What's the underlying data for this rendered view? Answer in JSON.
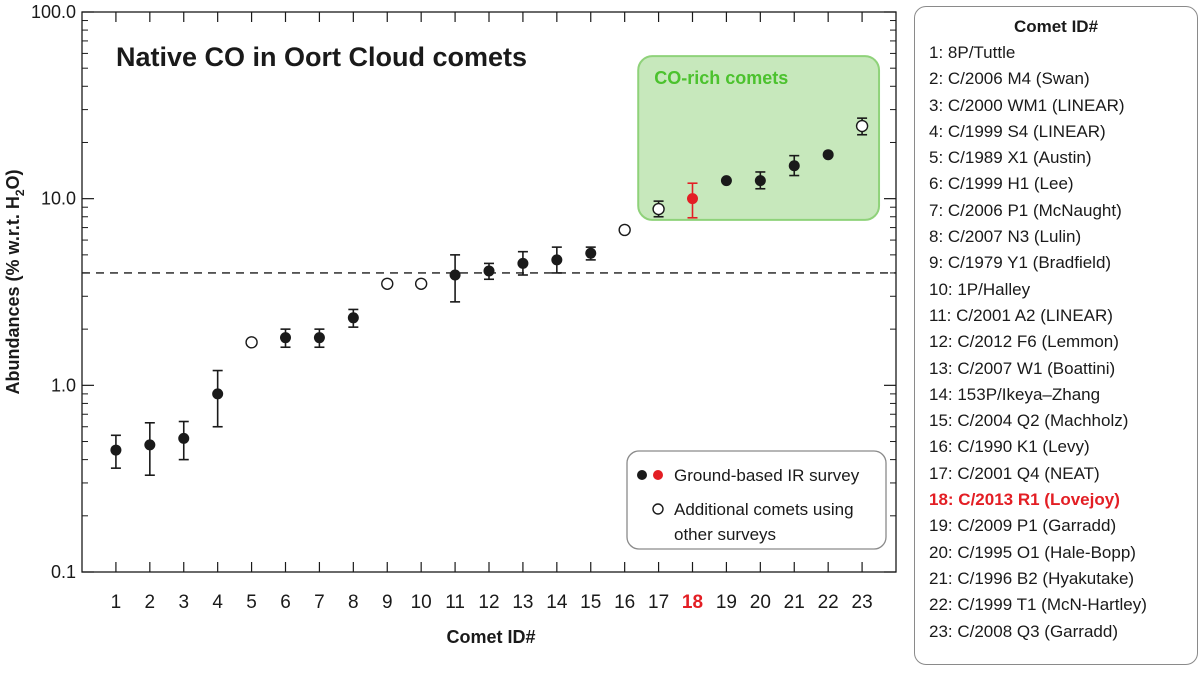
{
  "chart_data": {
    "type": "scatter",
    "title": "Native CO in Oort Cloud comets",
    "xlabel": "Comet ID#",
    "ylabel_parts": [
      "Abundances (% w.r.t. H",
      "2",
      "O)"
    ],
    "yscale": "log",
    "ylim": [
      0.1,
      100.0
    ],
    "yticks": [
      "0.1",
      "1.0",
      "10.0",
      "100.0"
    ],
    "xlim": [
      0,
      24
    ],
    "categories": [
      "1",
      "2",
      "3",
      "4",
      "5",
      "6",
      "7",
      "8",
      "9",
      "10",
      "11",
      "12",
      "13",
      "14",
      "15",
      "16",
      "17",
      "18",
      "19",
      "20",
      "21",
      "22",
      "23"
    ],
    "highlight_category": "18",
    "reference_line": 4.0,
    "series": [
      {
        "name": "Ground-based IR survey",
        "marker": "filled",
        "color": "#1a1a1a",
        "points": [
          {
            "x": 1,
            "y": 0.45,
            "lo": 0.36,
            "hi": 0.54
          },
          {
            "x": 2,
            "y": 0.48,
            "lo": 0.33,
            "hi": 0.63
          },
          {
            "x": 3,
            "y": 0.52,
            "lo": 0.4,
            "hi": 0.64
          },
          {
            "x": 4,
            "y": 0.9,
            "lo": 0.6,
            "hi": 1.2
          },
          {
            "x": 6,
            "y": 1.8,
            "lo": 1.6,
            "hi": 2.0
          },
          {
            "x": 7,
            "y": 1.8,
            "lo": 1.6,
            "hi": 2.0
          },
          {
            "x": 8,
            "y": 2.3,
            "lo": 2.05,
            "hi": 2.55
          },
          {
            "x": 11,
            "y": 3.9,
            "lo": 2.8,
            "hi": 5.0
          },
          {
            "x": 12,
            "y": 4.1,
            "lo": 3.7,
            "hi": 4.5
          },
          {
            "x": 13,
            "y": 4.5,
            "lo": 3.9,
            "hi": 5.2
          },
          {
            "x": 14,
            "y": 4.7,
            "lo": 4.0,
            "hi": 5.5
          },
          {
            "x": 15,
            "y": 5.1,
            "lo": 4.7,
            "hi": 5.5
          },
          {
            "x": 19,
            "y": 12.5,
            "lo": null,
            "hi": null
          },
          {
            "x": 20,
            "y": 12.5,
            "lo": 11.3,
            "hi": 13.9
          },
          {
            "x": 21,
            "y": 15.0,
            "lo": 13.3,
            "hi": 17.0
          },
          {
            "x": 22,
            "y": 17.2,
            "lo": null,
            "hi": null
          }
        ]
      },
      {
        "name": "Ground-based IR survey",
        "marker": "filled",
        "color": "#e31e24",
        "points": [
          {
            "x": 18,
            "y": 10.0,
            "lo": 7.9,
            "hi": 12.1
          }
        ]
      },
      {
        "name": "Additional comets using other surveys",
        "marker": "open",
        "color": "#1a1a1a",
        "points": [
          {
            "x": 5,
            "y": 1.7,
            "lo": null,
            "hi": null
          },
          {
            "x": 9,
            "y": 3.5,
            "lo": null,
            "hi": null
          },
          {
            "x": 10,
            "y": 3.5,
            "lo": null,
            "hi": null
          },
          {
            "x": 16,
            "y": 6.8,
            "lo": null,
            "hi": null
          },
          {
            "x": 17,
            "y": 8.8,
            "lo": 8.0,
            "hi": 9.7
          },
          {
            "x": 23,
            "y": 24.5,
            "lo": 22.0,
            "hi": 27.0
          }
        ]
      }
    ],
    "region": {
      "label": "CO-rich comets",
      "x_from": 16.4,
      "x_to": 23.5,
      "y_from": 7.7,
      "y_to": 58.0,
      "color": "#8fd27a"
    },
    "legend": {
      "position": "bottom-right",
      "entries": [
        {
          "text": "Ground-based IR survey",
          "text2": "",
          "marker": "filled-pair"
        },
        {
          "text": "Additional comets using",
          "text2": "other surveys",
          "marker": "open"
        }
      ]
    },
    "colors": {
      "accent": "#e31e24",
      "region_text": "#4cc22e",
      "axis": "#1a1a1a"
    }
  },
  "sidebar": {
    "title": "Comet ID#",
    "highlight_index": 17,
    "items": [
      "1: 8P/Tuttle",
      "2: C/2006 M4 (Swan)",
      "3: C/2000 WM1 (LINEAR)",
      "4: C/1999 S4 (LINEAR)",
      "5: C/1989 X1 (Austin)",
      "6: C/1999 H1 (Lee)",
      "7: C/2006 P1 (McNaught)",
      "8: C/2007 N3 (Lulin)",
      "9: C/1979 Y1 (Bradfield)",
      "10: 1P/Halley",
      "11: C/2001 A2 (LINEAR)",
      "12: C/2012 F6 (Lemmon)",
      "13: C/2007 W1 (Boattini)",
      "14: 153P/Ikeya–Zhang",
      "15: C/2004 Q2 (Machholz)",
      "16: C/1990 K1 (Levy)",
      "17: C/2001 Q4 (NEAT)",
      "18: C/2013 R1 (Lovejoy)",
      "19: C/2009 P1 (Garradd)",
      "20:  C/1995 O1 (Hale-Bopp)",
      "21: C/1996 B2 (Hyakutake)",
      "22: C/1999 T1 (McN-Hartley)",
      "23: C/2008 Q3 (Garradd)"
    ]
  }
}
